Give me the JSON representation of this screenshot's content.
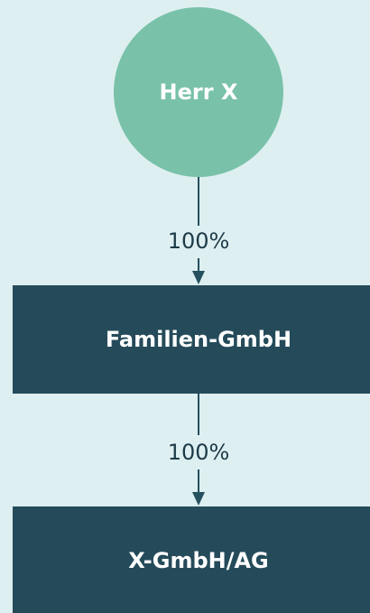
{
  "nodes": [
    {
      "label": "Herr X"
    },
    {
      "label": "Familien-GmbH"
    },
    {
      "label": "X-GmbH/AG"
    }
  ],
  "edges": [
    {
      "label": "100%"
    },
    {
      "label": "100%"
    }
  ]
}
